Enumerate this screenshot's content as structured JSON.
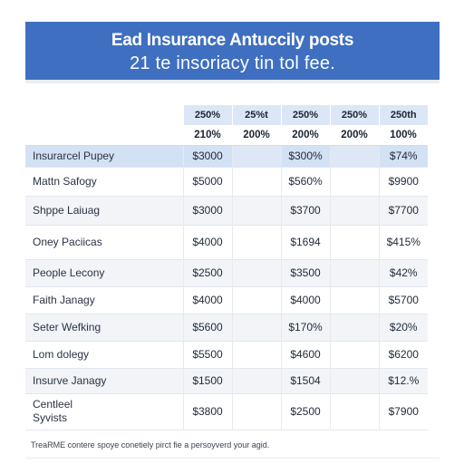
{
  "header": {
    "title": "Ead Insurance Antuccily posts",
    "subtitle": "21 te insoriacy tin tol fee."
  },
  "table": {
    "header_row_1": [
      "250%",
      "25%t",
      "250%",
      "250%",
      "250th"
    ],
    "header_row_2": [
      "210%",
      "200%",
      "200%",
      "200%",
      "100%"
    ],
    "rows": [
      {
        "label": "Insurarcel Pupey",
        "c1": "$3000",
        "c2": "",
        "c3": "$300%",
        "c4": "",
        "c5": "$74%"
      },
      {
        "label": "Mattn Safogy",
        "c1": "$5000",
        "c2": "",
        "c3": "$560%",
        "c4": "",
        "c5": "$9900"
      },
      {
        "label": "Shppe Laiuag",
        "c1": "$3000",
        "c2": "",
        "c3": "$3700",
        "c4": "",
        "c5": "$7700"
      },
      {
        "label": "Oney Paciicas",
        "c1": "$4000",
        "c2": "",
        "c3": "$1694",
        "c4": "",
        "c5": "$415%"
      },
      {
        "label": "People Lecony",
        "c1": "$2500",
        "c2": "",
        "c3": "$3500",
        "c4": "",
        "c5": "$42%"
      },
      {
        "label": "Faith Janagy",
        "c1": "$4000",
        "c2": "",
        "c3": "$4000",
        "c4": "",
        "c5": "$5700"
      },
      {
        "label": "Seter Wefking",
        "c1": "$5600",
        "c2": "",
        "c3": "$170%",
        "c4": "",
        "c5": "$20%"
      },
      {
        "label": "Lom dolegy",
        "c1": "$5500",
        "c2": "",
        "c3": "$4600",
        "c4": "",
        "c5": "$6200"
      },
      {
        "label": "Insurve Janagy",
        "c1": "$1500",
        "c2": "",
        "c3": "$1504",
        "c4": "",
        "c5": "$12.%"
      },
      {
        "label": "Centleel Syvists",
        "c1": "$3800",
        "c2": "",
        "c3": "$2500",
        "c4": "",
        "c5": "$7900"
      }
    ]
  },
  "footer": {
    "note": "TreaRME contere spoye conetiely pirct fie a persoyverd your agid."
  },
  "colors": {
    "banner": "#3f6fc0",
    "header_cell": "#dbe7f6",
    "highlight_row": "#d3e1f4"
  }
}
